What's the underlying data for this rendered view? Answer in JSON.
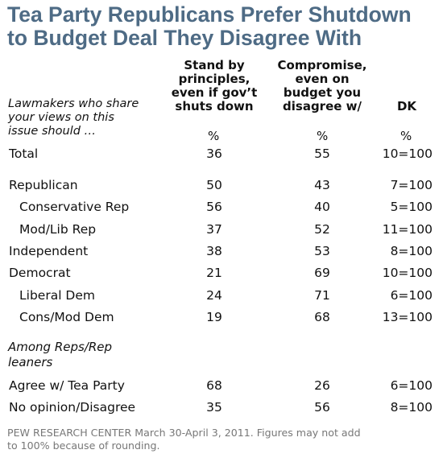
{
  "title": {
    "line1": "Tea Party Republicans Prefer Shutdown",
    "line2": "to Budget Deal They Disagree With"
  },
  "row_header": {
    "line1": "Lawmakers who share",
    "line2": "your views on this",
    "line3": "issue should  …"
  },
  "columns": [
    {
      "lines": [
        "Stand by",
        "principles,",
        "even if gov’t",
        "shuts down"
      ],
      "unit": "%"
    },
    {
      "lines": [
        "Compromise,",
        "even on",
        "budget you",
        "disagree w/"
      ],
      "unit": "%"
    },
    {
      "lines": [
        "DK"
      ],
      "unit": "%"
    }
  ],
  "rows": [
    {
      "label": "Total",
      "indent": false,
      "values": [
        "36",
        "55",
        "10=100"
      ]
    },
    {
      "label": "Republican",
      "indent": false,
      "values": [
        "50",
        "43",
        "7=100"
      ]
    },
    {
      "label": "Conservative Rep",
      "indent": true,
      "values": [
        "56",
        "40",
        "5=100"
      ]
    },
    {
      "label": "Mod/Lib Rep",
      "indent": true,
      "values": [
        "37",
        "52",
        "11=100"
      ]
    },
    {
      "label": "Independent",
      "indent": false,
      "values": [
        "38",
        "53",
        "8=100"
      ]
    },
    {
      "label": "Democrat",
      "indent": false,
      "values": [
        "21",
        "69",
        "10=100"
      ]
    },
    {
      "label": "Liberal Dem",
      "indent": true,
      "values": [
        "24",
        "71",
        "6=100"
      ]
    },
    {
      "label": "Cons/Mod Dem",
      "indent": true,
      "values": [
        "19",
        "68",
        "13=100"
      ]
    }
  ],
  "section": {
    "line1": "Among Reps/Rep",
    "line2": "leaners"
  },
  "section_rows": [
    {
      "label": "Agree w/ Tea Party",
      "indent": false,
      "values": [
        "68",
        "26",
        "6=100"
      ]
    },
    {
      "label": "No opinion/Disagree",
      "indent": false,
      "values": [
        "35",
        "56",
        "8=100"
      ]
    }
  ],
  "source": {
    "line1": "PEW RESEARCH CENTER March 30-April 3, 2011. Figures may not add",
    "line2": "to 100% because of rounding."
  },
  "colors": {
    "title": "#4e6b85",
    "source": "#777777"
  }
}
